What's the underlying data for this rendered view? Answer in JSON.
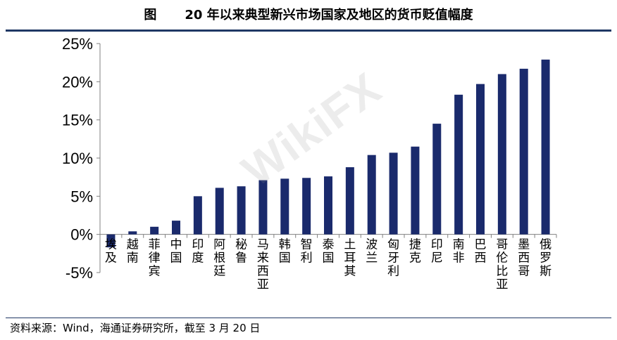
{
  "header": {
    "figure_label": "图",
    "title": "20 年以来典型新兴市场国家及地区的货币贬值幅度"
  },
  "source": {
    "text": "资料来源：Wind，海通证券研究所，截至 3 月 20 日"
  },
  "watermark": {
    "text": "WikiFX"
  },
  "colors": {
    "bar": "#1a2a6c",
    "axis": "#808080",
    "rule": "#1f3864"
  },
  "chart_data": {
    "type": "bar",
    "title": "20 年以来典型新兴市场国家及地区的货币贬值幅度",
    "categories": [
      "埃及",
      "越南",
      "菲律宾",
      "中国",
      "印度",
      "阿根廷",
      "秘鲁",
      "马来西亚",
      "韩国",
      "智利",
      "泰国",
      "土耳其",
      "波兰",
      "匈牙利",
      "捷克",
      "印尼",
      "南非",
      "巴西",
      "哥伦比亚",
      "墨西哥",
      "俄罗斯"
    ],
    "values": [
      -1.7,
      0.4,
      1.0,
      1.8,
      5.0,
      6.1,
      6.3,
      7.1,
      7.3,
      7.4,
      7.6,
      8.8,
      10.4,
      10.7,
      11.5,
      14.5,
      18.3,
      19.7,
      21.0,
      21.7,
      22.9
    ],
    "ytick_labels": [
      "-5%",
      "0%",
      "5%",
      "10%",
      "15%",
      "20%",
      "25%"
    ],
    "yticks": [
      -5,
      0,
      5,
      10,
      15,
      20,
      25
    ],
    "ylim": [
      -5,
      25
    ],
    "xlabel": "",
    "ylabel": "",
    "grid": false,
    "legend": "none"
  }
}
